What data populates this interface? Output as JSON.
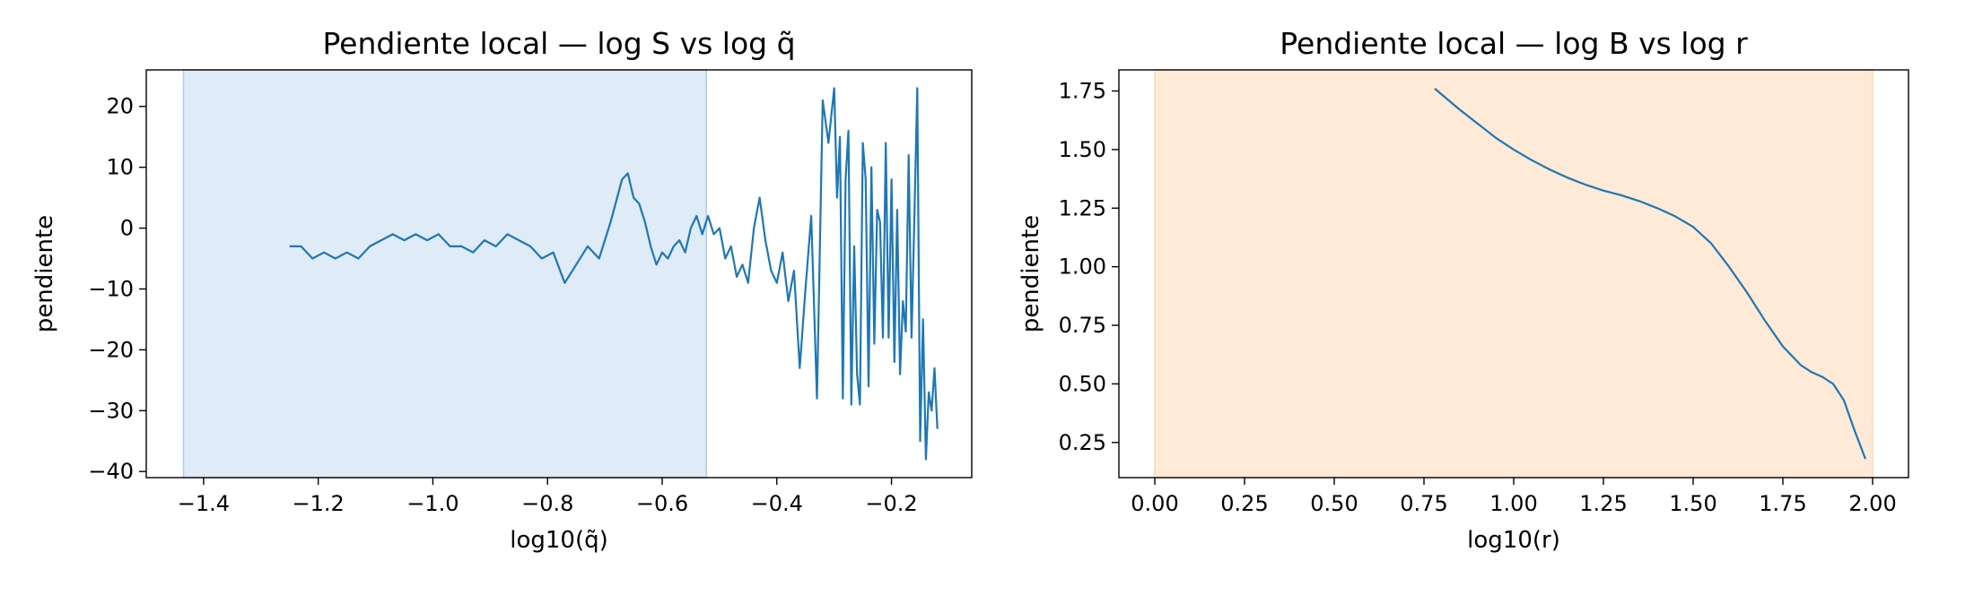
{
  "chart_data": [
    {
      "type": "line",
      "title": "Pendiente local — log S vs log q̃",
      "xlabel": "log10(q̃)",
      "ylabel": "pendiente",
      "xlim": [
        -1.5,
        -0.06
      ],
      "ylim": [
        -41,
        26
      ],
      "xticks": [
        -1.4,
        -1.2,
        -1.0,
        -0.8,
        -0.6,
        -0.4,
        -0.2
      ],
      "xtick_labels": [
        "−1.4",
        "−1.2",
        "−1.0",
        "−0.8",
        "−0.6",
        "−0.4",
        "−0.2"
      ],
      "yticks": [
        20,
        10,
        0,
        -10,
        -20,
        -30,
        -40
      ],
      "ytick_labels": [
        "20",
        "10",
        "0",
        "−10",
        "−20",
        "−30",
        "−40"
      ],
      "grid": false,
      "shaded_region": {
        "x": [
          -1.435,
          -0.523
        ],
        "color": "#aecde8",
        "opacity": 0.4
      },
      "series": [
        {
          "color": "#1f77b4",
          "x": [
            -1.25,
            -1.23,
            -1.21,
            -1.19,
            -1.17,
            -1.15,
            -1.13,
            -1.11,
            -1.09,
            -1.07,
            -1.05,
            -1.03,
            -1.01,
            -0.99,
            -0.97,
            -0.95,
            -0.93,
            -0.91,
            -0.89,
            -0.87,
            -0.85,
            -0.83,
            -0.81,
            -0.79,
            -0.77,
            -0.75,
            -0.73,
            -0.71,
            -0.69,
            -0.67,
            -0.66,
            -0.65,
            -0.64,
            -0.63,
            -0.62,
            -0.61,
            -0.6,
            -0.59,
            -0.58,
            -0.57,
            -0.56,
            -0.55,
            -0.54,
            -0.53,
            -0.52,
            -0.51,
            -0.5,
            -0.49,
            -0.48,
            -0.47,
            -0.46,
            -0.45,
            -0.44,
            -0.43,
            -0.42,
            -0.41,
            -0.4,
            -0.39,
            -0.38,
            -0.37,
            -0.36,
            -0.35,
            -0.34,
            -0.33,
            -0.32,
            -0.31,
            -0.3,
            -0.295,
            -0.29,
            -0.285,
            -0.28,
            -0.275,
            -0.27,
            -0.265,
            -0.26,
            -0.255,
            -0.25,
            -0.245,
            -0.24,
            -0.235,
            -0.23,
            -0.225,
            -0.22,
            -0.215,
            -0.21,
            -0.205,
            -0.2,
            -0.195,
            -0.19,
            -0.185,
            -0.18,
            -0.175,
            -0.17,
            -0.165,
            -0.16,
            -0.155,
            -0.15,
            -0.145,
            -0.14,
            -0.135,
            -0.13,
            -0.125,
            -0.12
          ],
          "y": [
            -3,
            -3,
            -5,
            -4,
            -5,
            -4,
            -5,
            -3,
            -2,
            -1,
            -2,
            -1,
            -2,
            -1,
            -3,
            -3,
            -4,
            -2,
            -3,
            -1,
            -2,
            -3,
            -5,
            -4,
            -9,
            -6,
            -3,
            -5,
            1,
            8,
            9,
            5,
            4,
            1,
            -3,
            -6,
            -4,
            -5,
            -3,
            -2,
            -4,
            0,
            2,
            -1,
            2,
            -1,
            0,
            -5,
            -3,
            -8,
            -6,
            -9,
            0,
            5,
            -2,
            -7,
            -9,
            -4,
            -12,
            -7,
            -23,
            -10,
            2,
            -28,
            21,
            14,
            23,
            5,
            15,
            -28,
            8,
            16,
            -29,
            -3,
            -24,
            -29,
            14,
            8,
            -26,
            10,
            -19,
            3,
            1,
            -18,
            14,
            -18,
            8,
            -22,
            3,
            -24,
            -12,
            -17,
            12,
            -18,
            2,
            23,
            -35,
            -15,
            -38,
            -27,
            -30,
            -23,
            -33
          ]
        }
      ]
    },
    {
      "type": "line",
      "title": "Pendiente local — log B vs log r",
      "xlabel": "log10(r)",
      "ylabel": "pendiente",
      "xlim": [
        -0.1,
        2.1
      ],
      "ylim": [
        0.1,
        1.84
      ],
      "xticks": [
        0.0,
        0.25,
        0.5,
        0.75,
        1.0,
        1.25,
        1.5,
        1.75,
        2.0
      ],
      "xtick_labels": [
        "0.00",
        "0.25",
        "0.50",
        "0.75",
        "1.00",
        "1.25",
        "1.50",
        "1.75",
        "2.00"
      ],
      "yticks": [
        1.75,
        1.5,
        1.25,
        1.0,
        0.75,
        0.5,
        0.25
      ],
      "ytick_labels": [
        "1.75",
        "1.50",
        "1.25",
        "1.00",
        "0.75",
        "0.50",
        "0.25"
      ],
      "grid": false,
      "shaded_region": {
        "x": [
          0.0,
          2.0
        ],
        "color": "#fdd9b5",
        "opacity": 0.55
      },
      "series": [
        {
          "color": "#1f77b4",
          "x": [
            0.78,
            0.85,
            0.9,
            0.95,
            1.0,
            1.05,
            1.1,
            1.15,
            1.2,
            1.25,
            1.3,
            1.35,
            1.4,
            1.45,
            1.5,
            1.55,
            1.6,
            1.65,
            1.7,
            1.75,
            1.8,
            1.83,
            1.86,
            1.89,
            1.92,
            1.95,
            1.98
          ],
          "y": [
            1.76,
            1.67,
            1.61,
            1.55,
            1.5,
            1.455,
            1.415,
            1.38,
            1.35,
            1.325,
            1.305,
            1.28,
            1.25,
            1.215,
            1.17,
            1.1,
            1.0,
            0.89,
            0.77,
            0.66,
            0.58,
            0.55,
            0.53,
            0.5,
            0.43,
            0.3,
            0.18
          ]
        }
      ]
    }
  ]
}
